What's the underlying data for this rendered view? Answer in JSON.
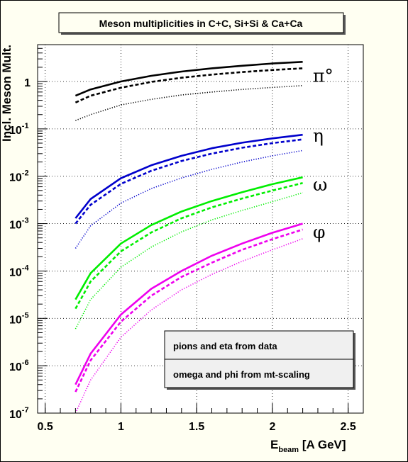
{
  "chart_data": {
    "type": "line",
    "title": "Meson multiplicities in C+C, Si+Si & Ca+Ca",
    "ylabel": "Incl. Meson Mult.",
    "xlabel_main": "E",
    "xlabel_sub": "beam",
    "xlabel_unit": " [A GeV]",
    "xlim": [
      0.45,
      2.6
    ],
    "ylim": [
      1e-07,
      6
    ],
    "yscale": "log",
    "grid": true,
    "x_ticks": [
      {
        "value": 0.5,
        "label": "0.5"
      },
      {
        "value": 1,
        "label": "1"
      },
      {
        "value": 1.5,
        "label": "1.5"
      },
      {
        "value": 2,
        "label": "2"
      },
      {
        "value": 2.5,
        "label": "2.5"
      }
    ],
    "y_ticks": [
      {
        "value": 1e-07,
        "base": "10",
        "exp": "-7"
      },
      {
        "value": 1e-06,
        "base": "10",
        "exp": "-6"
      },
      {
        "value": 1e-05,
        "base": "10",
        "exp": "-5"
      },
      {
        "value": 0.0001,
        "base": "10",
        "exp": "-4"
      },
      {
        "value": 0.001,
        "base": "10",
        "exp": "-3"
      },
      {
        "value": 0.01,
        "base": "10",
        "exp": "-2"
      },
      {
        "value": 0.1,
        "base": "10",
        "exp": "-1"
      },
      {
        "value": 1,
        "base": "1",
        "exp": ""
      }
    ],
    "x": [
      0.7,
      0.8,
      1.0,
      1.2,
      1.4,
      1.6,
      1.8,
      2.0,
      2.2
    ],
    "groups": [
      {
        "label": "π°",
        "color": "#000000",
        "label_y": 1.3,
        "series": [
          {
            "style": "solid",
            "values": [
              0.5,
              0.68,
              1.0,
              1.32,
              1.62,
              1.9,
              2.15,
              2.4,
              2.6
            ]
          },
          {
            "style": "dashed",
            "values": [
              0.36,
              0.5,
              0.74,
              0.98,
              1.2,
              1.4,
              1.58,
              1.75,
              1.9
            ]
          },
          {
            "style": "dotted",
            "values": [
              0.15,
              0.2,
              0.32,
              0.42,
              0.52,
              0.6,
              0.68,
              0.75,
              0.82
            ]
          }
        ]
      },
      {
        "label": "η",
        "color": "#0000cc",
        "label_y": 0.07,
        "series": [
          {
            "style": "solid",
            "values": [
              0.0013,
              0.0033,
              0.0091,
              0.017,
              0.027,
              0.039,
              0.051,
              0.063,
              0.075
            ]
          },
          {
            "style": "dashed",
            "values": [
              0.001,
              0.0025,
              0.0069,
              0.013,
              0.021,
              0.03,
              0.04,
              0.05,
              0.06
            ]
          },
          {
            "style": "dotted",
            "values": [
              0.0003,
              0.0009,
              0.0027,
              0.0055,
              0.0092,
              0.014,
              0.02,
              0.027,
              0.035
            ]
          }
        ]
      },
      {
        "label": "ω",
        "color": "#00ee00",
        "label_y": 0.0065,
        "series": [
          {
            "style": "solid",
            "values": [
              2.5e-05,
              9e-05,
              0.00038,
              0.00093,
              0.0018,
              0.003,
              0.0046,
              0.0068,
              0.0095
            ]
          },
          {
            "style": "dashed",
            "values": [
              1.6e-05,
              6e-05,
              0.00026,
              0.00065,
              0.0013,
              0.0022,
              0.0034,
              0.005,
              0.0072
            ]
          },
          {
            "style": "dotted",
            "values": [
              6e-06,
              2.5e-05,
              0.00012,
              0.00032,
              0.00067,
              0.0012,
              0.0019,
              0.0029,
              0.0045
            ]
          }
        ]
      },
      {
        "label": "φ",
        "color": "#ee00ee",
        "label_y": 0.00065,
        "series": [
          {
            "style": "solid",
            "values": [
              4e-07,
              1.8e-06,
              1.2e-05,
              4.2e-05,
              0.0001,
              0.00021,
              0.00038,
              0.00064,
              0.001
            ]
          },
          {
            "style": "dashed",
            "values": [
              2.8e-07,
              1.3e-06,
              8.5e-06,
              3e-05,
              7.5e-05,
              0.00015,
              0.00028,
              0.00047,
              0.00075
            ]
          },
          {
            "style": "dotted",
            "values": [
              1e-07,
              5e-07,
              4e-06,
              1.5e-05,
              4e-05,
              8.5e-05,
              0.00016,
              0.00028,
              0.00048
            ]
          }
        ]
      }
    ],
    "legend_entries": [
      "pions and eta from data",
      "omega and phi from mt-scaling"
    ]
  }
}
